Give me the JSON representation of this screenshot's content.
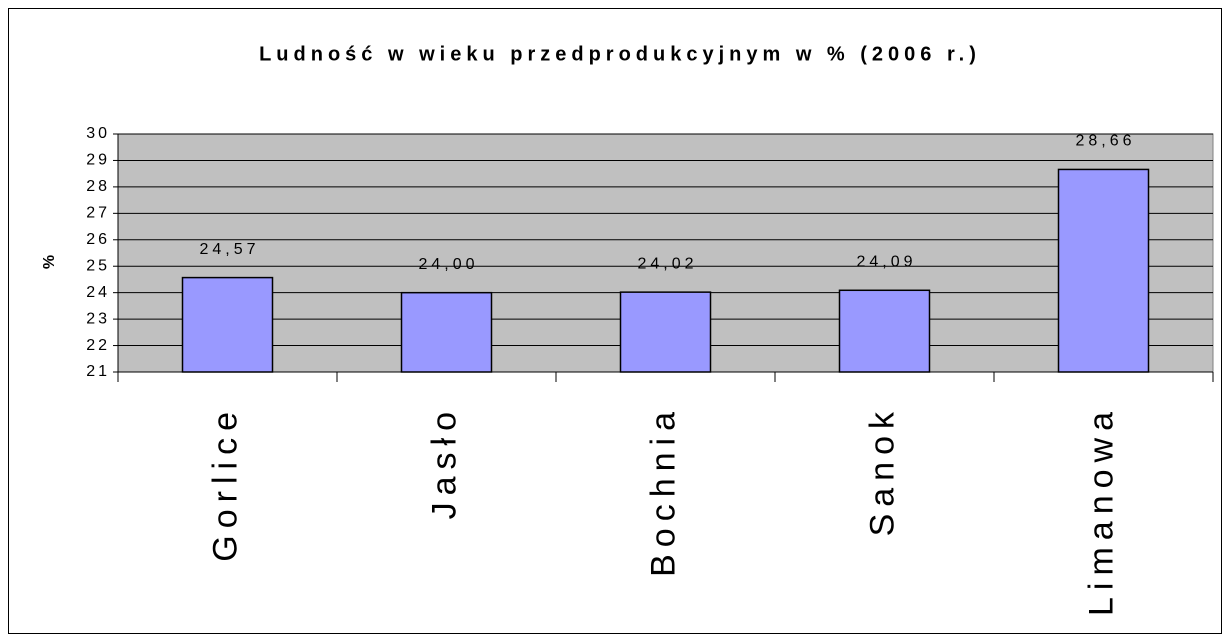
{
  "chart_data": {
    "type": "bar",
    "title": "Ludność w wieku przedprodukcyjnym w % (2006 r.)",
    "y_label": "%",
    "categories": [
      "Gorlice",
      "Jasło",
      "Bochnia",
      "Sanok",
      "Limanowa"
    ],
    "values": [
      24.57,
      24.0,
      24.02,
      24.09,
      28.66
    ],
    "value_labels": [
      "24,57",
      "24,00",
      "24,02",
      "24,09",
      "28,66"
    ],
    "color": "#9999ff",
    "ylim": [
      21,
      30
    ],
    "yticks": [
      21,
      22,
      23,
      24,
      25,
      26,
      27,
      28,
      29,
      30
    ],
    "grid": true
  }
}
